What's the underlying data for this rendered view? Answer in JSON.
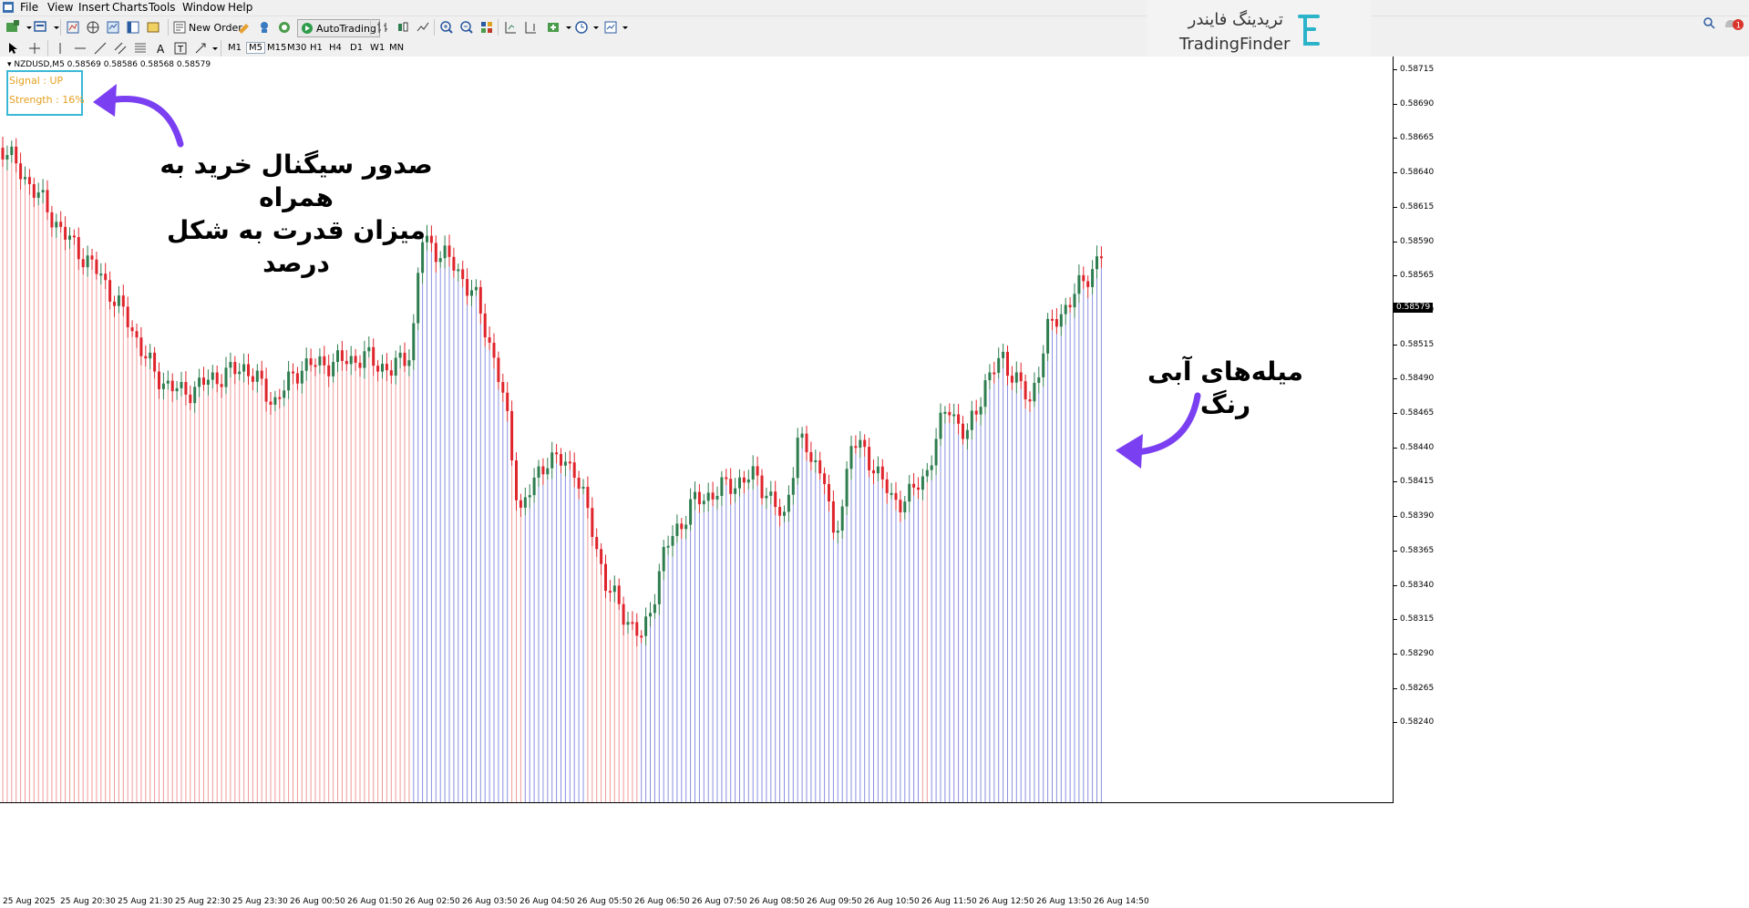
{
  "menu": {
    "items": [
      "File",
      "View",
      "Insert",
      "Charts",
      "Tools",
      "Window",
      "Help"
    ]
  },
  "toolbar": {
    "new_order_label": "New Order",
    "autotrading_label": "AutoTrading",
    "timeframes": [
      "M1",
      "M5",
      "M15",
      "M30",
      "H1",
      "H4",
      "D1",
      "W1",
      "MN"
    ],
    "active_timeframe": "M5"
  },
  "chart": {
    "symbol_header": "NZDUSD,M5  0.58569 0.58586 0.58568 0.58579",
    "current_price": "0.58579",
    "price_labels": [
      "0.58715",
      "0.58690",
      "0.58665",
      "0.58640",
      "0.58615",
      "0.58590",
      "0.58565",
      "0.58540",
      "0.58515",
      "0.58490",
      "0.58465",
      "0.58440",
      "0.58415",
      "0.58390",
      "0.58365",
      "0.58340",
      "0.58315",
      "0.58290",
      "0.58265",
      "0.58240"
    ],
    "time_labels": [
      "25 Aug 2025",
      "25 Aug 20:30",
      "25 Aug 21:30",
      "25 Aug 22:30",
      "25 Aug 23:30",
      "26 Aug 00:50",
      "26 Aug 01:50",
      "26 Aug 02:50",
      "26 Aug 03:50",
      "26 Aug 04:50",
      "26 Aug 05:50",
      "26 Aug 06:50",
      "26 Aug 07:50",
      "26 Aug 08:50",
      "26 Aug 09:50",
      "26 Aug 10:50",
      "26 Aug 11:50",
      "26 Aug 12:50",
      "26 Aug 13:50",
      "26 Aug 14:50"
    ]
  },
  "indicator": {
    "signal": "Signal : UP",
    "strength": "Strength : 16%"
  },
  "annotations": {
    "signal_line1": "صدور سیگنال خرید به همراه",
    "signal_line2": "میزان قدرت به شکل درصد",
    "blue_bars": "میله‌های آبی رنگ"
  },
  "logo": {
    "fa": "تریدینگ فایندر",
    "en": "TradingFinder"
  },
  "notification_count": "1",
  "colors": {
    "up": "#2e7d4f",
    "down": "#e0242b",
    "bar_red": "#f29a9a",
    "bar_blue": "#8a8fe0",
    "arrow": "#7b3ff2",
    "signal_text": "#e6a020",
    "signal_border": "#3cb8d6"
  }
}
